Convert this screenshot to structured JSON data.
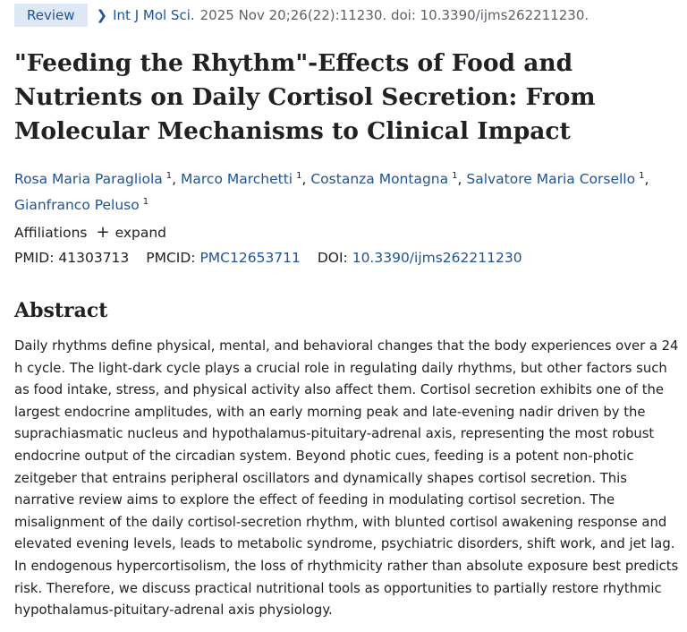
{
  "header": {
    "badge": "Review",
    "journal": "Int J Mol Sci.",
    "citation": "2025 Nov 20;26(22):11230. doi: 10.3390/ijms262211230."
  },
  "article": {
    "title": "\"Feeding the Rhythm\"-Effects of Food and Nutrients on Daily Cortisol Secretion: From Molecular Mechanisms to Clinical Impact",
    "authors": [
      {
        "name": "Rosa Maria Paragliola",
        "sup": "1"
      },
      {
        "name": "Marco Marchetti",
        "sup": "1"
      },
      {
        "name": "Costanza Montagna",
        "sup": "1"
      },
      {
        "name": "Salvatore Maria Corsello",
        "sup": "1"
      },
      {
        "name": "Gianfranco Peluso",
        "sup": "1"
      }
    ],
    "affiliations_label": "Affiliations",
    "expand_label": "expand",
    "ids": {
      "pmid_label": "PMID:",
      "pmid": "41303713",
      "pmcid_label": "PMCID:",
      "pmcid": "PMC12653711",
      "doi_label": "DOI:",
      "doi": "10.3390/ijms262211230"
    }
  },
  "abstract": {
    "heading": "Abstract",
    "text": "Daily rhythms define physical, mental, and behavioral changes that the body experiences over a 24 h cycle. The light-dark cycle plays a crucial role in regulating daily rhythms, but other factors such as food intake, stress, and physical activity also affect them. Cortisol secretion exhibits one of the largest endocrine amplitudes, with an early morning peak and late-evening nadir driven by the suprachiasmatic nucleus and hypothalamus-pituitary-adrenal axis, representing the most robust endocrine output of the circadian system. Beyond photic cues, feeding is a potent non-photic zeitgeber that entrains peripheral oscillators and dynamically shapes cortisol secretion. This narrative review aims to explore the effect of feeding in modulating cortisol secretion. The misalignment of the daily cortisol-secretion rhythm, with blunted cortisol awakening response and elevated evening levels, leads to metabolic syndrome, psychiatric disorders, shift work, and jet lag. In endogenous hypercortisolism, the loss of rhythmicity rather than absolute exposure best predicts risk. Therefore, we discuss practical nutritional tools as opportunities to partially restore rhythmic hypothalamus-pituitary-adrenal axis physiology."
  },
  "icons": {
    "chevron": "chevron-right-icon",
    "expand": "plus-icon"
  },
  "colors": {
    "link": "#205493",
    "badge_bg": "#dfe9f5",
    "text": "#212121",
    "muted": "#5b616b"
  }
}
